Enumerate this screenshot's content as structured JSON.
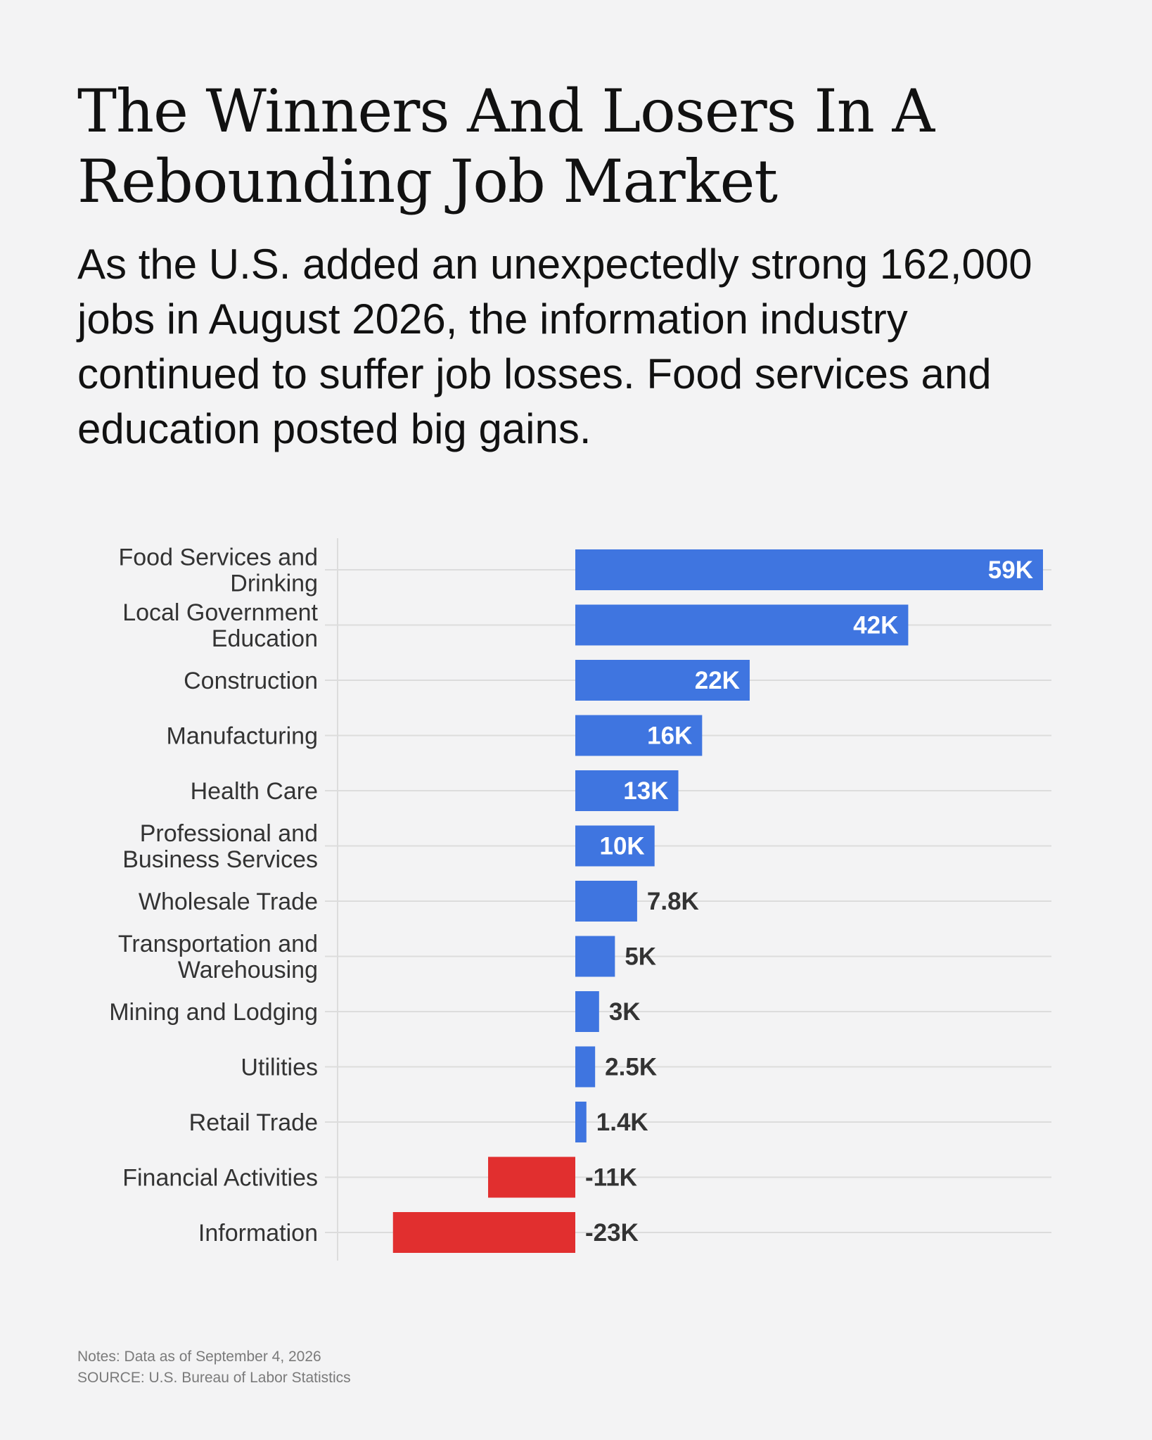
{
  "title": "The Winners And Losers In A Rebounding Job Market",
  "subtitle": "As the U.S. added an unexpectedly strong 162,000 jobs in August 2026, the information industry continued to suffer job losses. Food services and education posted big gains.",
  "notes": "Notes: Data as of September 4, 2026",
  "source": "SOURCE: U.S. Bureau of Labor Statistics",
  "colors": {
    "positive": "#3f75e0",
    "negative": "#e12f2f",
    "background": "#f3f3f4",
    "gridline": "#dcdcdc"
  },
  "chart_data": {
    "type": "bar",
    "orientation": "horizontal",
    "categories": [
      "Food Services and Drinking",
      "Local Government Education",
      "Construction",
      "Manufacturing",
      "Health Care",
      "Professional and Business Services",
      "Wholesale Trade",
      "Transportation and Warehousing",
      "Mining and Lodging",
      "Utilities",
      "Retail Trade",
      "Financial Activities",
      "Information"
    ],
    "category_lines": [
      [
        "Food Services and",
        "Drinking"
      ],
      [
        "Local Government",
        "Education"
      ],
      [
        "Construction"
      ],
      [
        "Manufacturing"
      ],
      [
        "Health Care"
      ],
      [
        "Professional and",
        "Business Services"
      ],
      [
        "Wholesale Trade"
      ],
      [
        "Transportation and",
        "Warehousing"
      ],
      [
        "Mining and Lodging"
      ],
      [
        "Utilities"
      ],
      [
        "Retail Trade"
      ],
      [
        "Financial Activities"
      ],
      [
        "Information"
      ]
    ],
    "values": [
      59000,
      42000,
      22000,
      16000,
      13000,
      10000,
      7800,
      5000,
      3000,
      2500,
      1400,
      -11000,
      -23000
    ],
    "labels": [
      "59K",
      "42K",
      "22K",
      "16K",
      "13K",
      "10K",
      "7.8K",
      "5K",
      "3K",
      "2.5K",
      "1.4K",
      "-11K",
      "-23K"
    ],
    "xlim": [
      -30000,
      60000
    ],
    "grid": true,
    "legend": "none"
  }
}
